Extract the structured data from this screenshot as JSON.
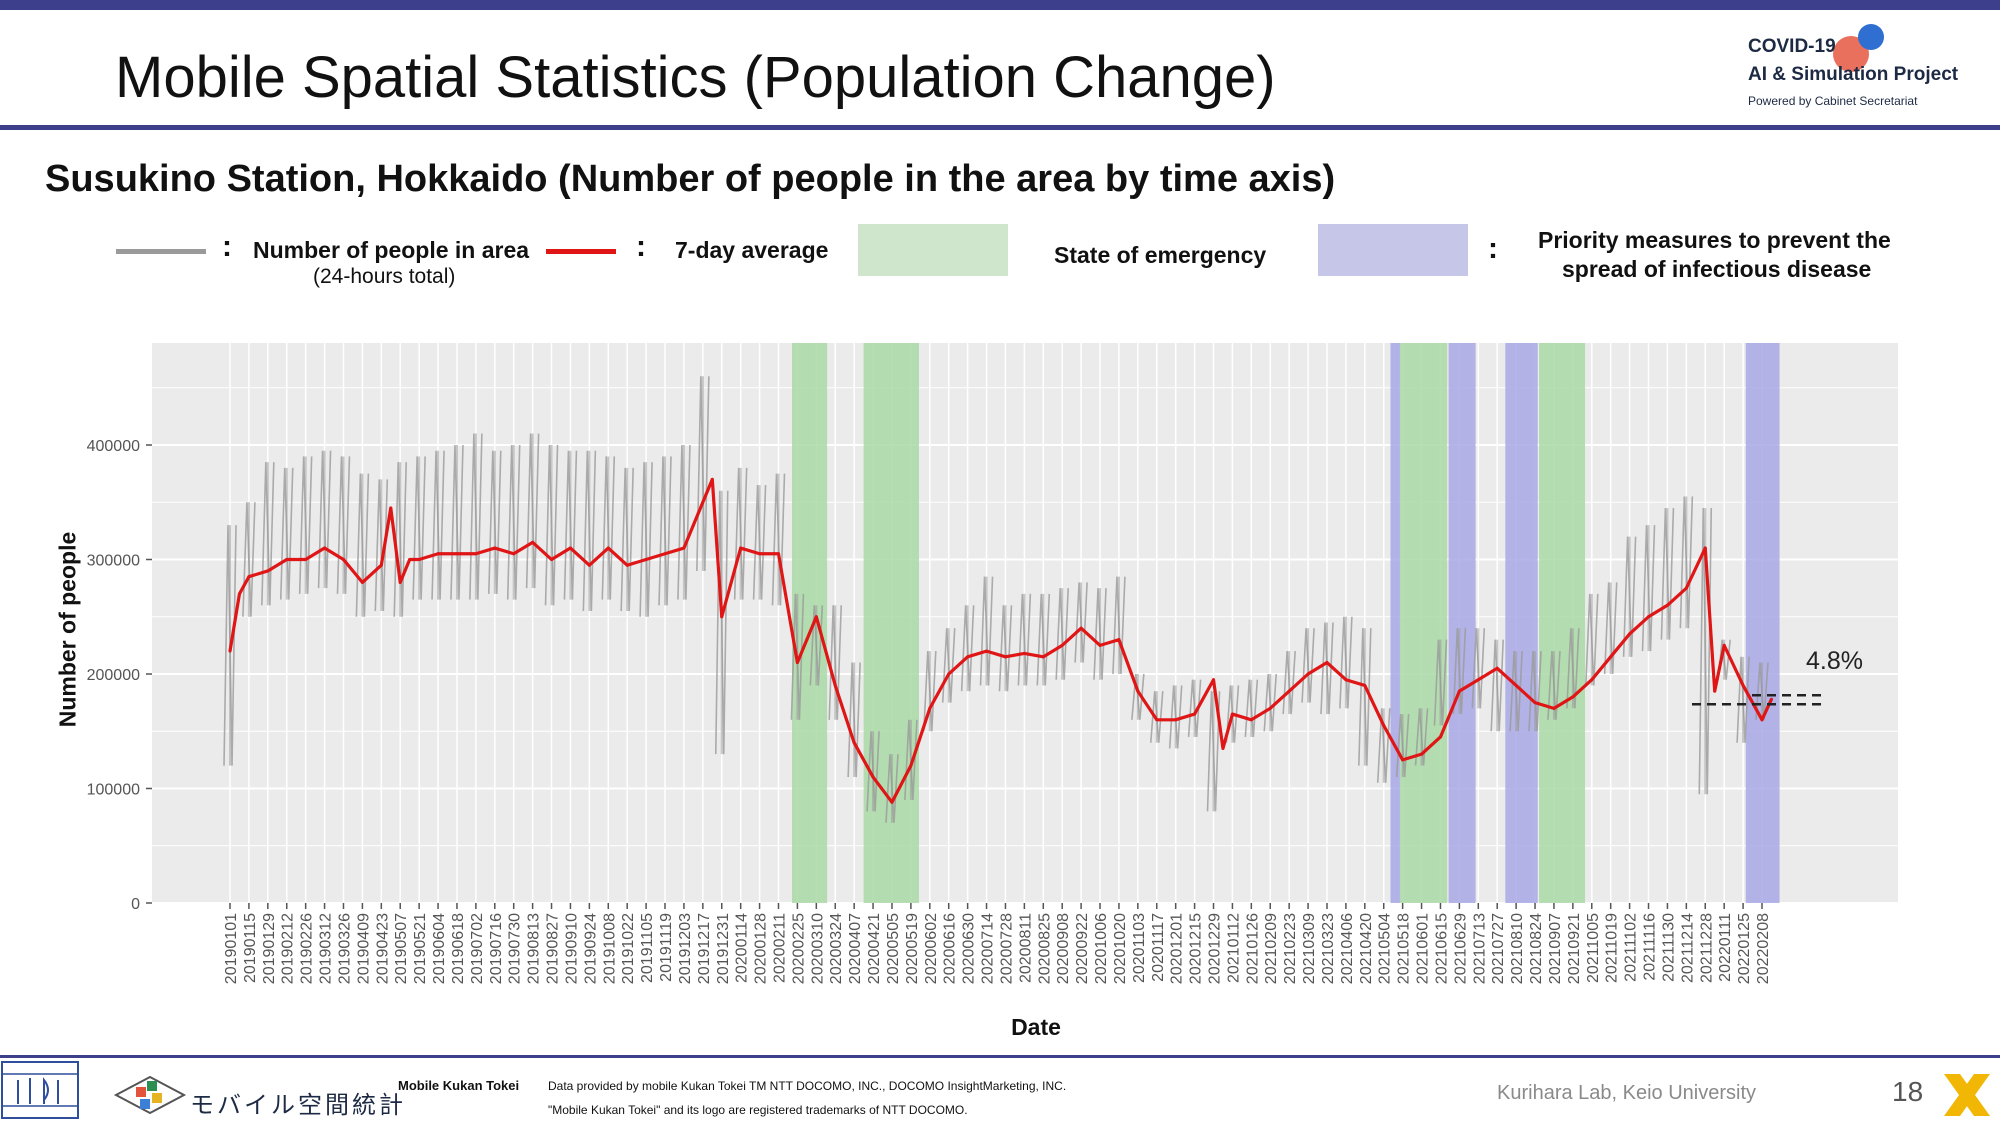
{
  "slide": {
    "title": "Mobile Spatial Statistics (Population Change)",
    "subtitle": "Susukino Station, Hokkaido (Number of people in the area by time axis)",
    "page_number": "18",
    "logo": {
      "line1": "COVID-19",
      "line2": "AI & Simulation Project",
      "line3": "Powered by Cabinet Secretariat"
    },
    "footer": {
      "brand": "Mobile Kukan Tokei",
      "jp_brand": "モバイル空間統計",
      "note1": "Data provided by mobile Kukan Tokei TM NTT DOCOMO, INC., DOCOMO InsightMarketing, INC.",
      "note2": "\"Mobile Kukan Tokei\" and its logo are registered trademarks of NTT DOCOMO.",
      "lab": "Kurihara Lab, Keio University"
    }
  },
  "legend": {
    "colon": ":",
    "daily_label": "Number of people in area",
    "daily_note": "(24-hours total)",
    "avg_label": "7-day average",
    "emergency_label": "State of emergency",
    "priority_line1": "Priority measures to prevent the",
    "priority_line2": "spread of infectious disease"
  },
  "colors": {
    "daily": "#9a9a9a",
    "avg": "#e01616",
    "emergency": "#a9d9a6",
    "priority": "#a8a8e6",
    "panel": "#ebebeb",
    "accent": "#3d3f8c"
  },
  "chart_data": {
    "type": "line",
    "xlabel": "Date",
    "ylabel": "Number of people",
    "ylim": [
      0,
      400000
    ],
    "yticks": [
      0,
      100000,
      200000,
      300000,
      400000
    ],
    "grid": true,
    "x_tick_labels": [
      "20190101",
      "20190115",
      "20190129",
      "20190212",
      "20190226",
      "20190312",
      "20190326",
      "20190409",
      "20190423",
      "20190507",
      "20190521",
      "20190604",
      "20190618",
      "20190702",
      "20190716",
      "20190730",
      "20190813",
      "20190827",
      "20190910",
      "20190924",
      "20191008",
      "20191022",
      "20191105",
      "20191119",
      "20191203",
      "20191217",
      "20191231",
      "20200114",
      "20200128",
      "20200211",
      "20200225",
      "20200310",
      "20200324",
      "20200407",
      "20200421",
      "20200505",
      "20200519",
      "20200602",
      "20200616",
      "20200630",
      "20200714",
      "20200728",
      "20200811",
      "20200825",
      "20200908",
      "20200922",
      "20201006",
      "20201020",
      "20201103",
      "20201117",
      "20201201",
      "20201215",
      "20201229",
      "20210112",
      "20210126",
      "20210209",
      "20210223",
      "20210309",
      "20210323",
      "20210406",
      "20210420",
      "20210504",
      "20210518",
      "20210601",
      "20210615",
      "20210629",
      "20210713",
      "20210727",
      "20210810",
      "20210824",
      "20210907",
      "20210921",
      "20211005",
      "20211019",
      "20211102",
      "20211116",
      "20211130",
      "20211214",
      "20211228",
      "20220111",
      "20220125",
      "20220208"
    ],
    "series": [
      {
        "name": "7-day average",
        "x": [
          "20190101",
          "20190108",
          "20190115",
          "20190129",
          "20190212",
          "20190226",
          "20190312",
          "20190326",
          "20190409",
          "20190423",
          "20190430",
          "20190507",
          "20190514",
          "20190521",
          "20190604",
          "20190618",
          "20190702",
          "20190716",
          "20190730",
          "20190813",
          "20190827",
          "20190910",
          "20190924",
          "20191008",
          "20191022",
          "20191105",
          "20191119",
          "20191203",
          "20191210",
          "20191217",
          "20191224",
          "20191231",
          "20200114",
          "20200128",
          "20200211",
          "20200225",
          "20200303",
          "20200310",
          "20200324",
          "20200407",
          "20200421",
          "20200505",
          "20200519",
          "20200602",
          "20200616",
          "20200630",
          "20200714",
          "20200728",
          "20200811",
          "20200825",
          "20200908",
          "20200922",
          "20201006",
          "20201020",
          "20201103",
          "20201117",
          "20201201",
          "20201215",
          "20201229",
          "20210105",
          "20210112",
          "20210126",
          "20210209",
          "20210223",
          "20210309",
          "20210323",
          "20210406",
          "20210420",
          "20210504",
          "20210518",
          "20210601",
          "20210615",
          "20210629",
          "20210713",
          "20210727",
          "20210810",
          "20210824",
          "20210907",
          "20210921",
          "20211005",
          "20211019",
          "20211102",
          "20211116",
          "20211130",
          "20211214",
          "20211228",
          "20220104",
          "20220111",
          "20220125",
          "20220208",
          "20220215"
        ],
        "values": [
          220000,
          270000,
          285000,
          290000,
          300000,
          300000,
          310000,
          300000,
          280000,
          295000,
          345000,
          280000,
          300000,
          300000,
          305000,
          305000,
          305000,
          310000,
          305000,
          315000,
          300000,
          310000,
          295000,
          310000,
          295000,
          300000,
          305000,
          310000,
          330000,
          350000,
          370000,
          250000,
          310000,
          305000,
          305000,
          210000,
          230000,
          250000,
          190000,
          140000,
          110000,
          88000,
          120000,
          170000,
          200000,
          215000,
          220000,
          215000,
          218000,
          215000,
          225000,
          240000,
          225000,
          230000,
          185000,
          160000,
          160000,
          165000,
          195000,
          135000,
          165000,
          160000,
          170000,
          185000,
          200000,
          210000,
          195000,
          190000,
          155000,
          125000,
          130000,
          145000,
          185000,
          195000,
          205000,
          190000,
          175000,
          170000,
          180000,
          195000,
          215000,
          235000,
          250000,
          260000,
          275000,
          310000,
          185000,
          225000,
          190000,
          160000,
          178000
        ]
      },
      {
        "name": "Number of people in area",
        "x": [
          "20190101",
          "20190115",
          "20190129",
          "20190212",
          "20190226",
          "20190312",
          "20190326",
          "20190409",
          "20190423",
          "20190507",
          "20190521",
          "20190604",
          "20190618",
          "20190702",
          "20190716",
          "20190730",
          "20190813",
          "20190827",
          "20190910",
          "20190924",
          "20191008",
          "20191022",
          "20191105",
          "20191119",
          "20191203",
          "20191217",
          "20191231",
          "20200114",
          "20200128",
          "20200211",
          "20200225",
          "20200310",
          "20200324",
          "20200407",
          "20200421",
          "20200505",
          "20200519",
          "20200602",
          "20200616",
          "20200630",
          "20200714",
          "20200728",
          "20200811",
          "20200825",
          "20200908",
          "20200922",
          "20201006",
          "20201020",
          "20201103",
          "20201117",
          "20201201",
          "20201215",
          "20201229",
          "20210112",
          "20210126",
          "20210209",
          "20210223",
          "20210309",
          "20210323",
          "20210406",
          "20210420",
          "20210504",
          "20210518",
          "20210601",
          "20210615",
          "20210629",
          "20210713",
          "20210727",
          "20210810",
          "20210824",
          "20210907",
          "20210921",
          "20211005",
          "20211019",
          "20211102",
          "20211116",
          "20211130",
          "20211214",
          "20211228",
          "20220111",
          "20220125",
          "20220208"
        ],
        "low": [
          120000,
          250000,
          260000,
          265000,
          270000,
          275000,
          270000,
          250000,
          255000,
          250000,
          265000,
          265000,
          265000,
          265000,
          270000,
          265000,
          275000,
          260000,
          265000,
          255000,
          265000,
          255000,
          250000,
          260000,
          265000,
          290000,
          130000,
          265000,
          265000,
          260000,
          160000,
          190000,
          160000,
          110000,
          80000,
          70000,
          90000,
          150000,
          175000,
          185000,
          190000,
          185000,
          190000,
          190000,
          195000,
          210000,
          195000,
          200000,
          160000,
          140000,
          135000,
          145000,
          80000,
          140000,
          145000,
          150000,
          165000,
          175000,
          165000,
          170000,
          120000,
          105000,
          110000,
          120000,
          155000,
          165000,
          170000,
          150000,
          150000,
          150000,
          160000,
          170000,
          190000,
          200000,
          215000,
          220000,
          230000,
          240000,
          95000,
          195000,
          140000,
          160000
        ],
        "high": [
          330000,
          350000,
          385000,
          380000,
          390000,
          395000,
          390000,
          375000,
          370000,
          385000,
          390000,
          395000,
          400000,
          410000,
          395000,
          400000,
          410000,
          400000,
          395000,
          395000,
          390000,
          380000,
          385000,
          390000,
          400000,
          460000,
          360000,
          380000,
          365000,
          375000,
          270000,
          260000,
          260000,
          210000,
          150000,
          130000,
          160000,
          220000,
          240000,
          260000,
          285000,
          260000,
          270000,
          270000,
          275000,
          280000,
          275000,
          285000,
          200000,
          185000,
          190000,
          195000,
          185000,
          190000,
          195000,
          200000,
          220000,
          240000,
          245000,
          250000,
          240000,
          170000,
          165000,
          170000,
          230000,
          240000,
          240000,
          230000,
          220000,
          220000,
          220000,
          240000,
          270000,
          280000,
          320000,
          330000,
          345000,
          355000,
          345000,
          230000,
          215000,
          210000
        ]
      }
    ],
    "bands": [
      {
        "type": "State of emergency",
        "start": "20200221",
        "end": "20200318"
      },
      {
        "type": "State of emergency",
        "start": "20200414",
        "end": "20200525"
      },
      {
        "type": "Priority measures to prevent the spread of infectious disease",
        "start": "20210509",
        "end": "20210516"
      },
      {
        "type": "State of emergency",
        "start": "20210516",
        "end": "20210620"
      },
      {
        "type": "Priority measures to prevent the spread of infectious disease",
        "start": "20210621",
        "end": "20210711"
      },
      {
        "type": "Priority measures to prevent the spread of infectious disease",
        "start": "20210802",
        "end": "20210826"
      },
      {
        "type": "State of emergency",
        "start": "20210827",
        "end": "20210930"
      },
      {
        "type": "Priority measures to prevent the spread of infectious disease",
        "start": "20220127",
        "end": "20220221"
      }
    ],
    "annotation": "4.8%"
  }
}
